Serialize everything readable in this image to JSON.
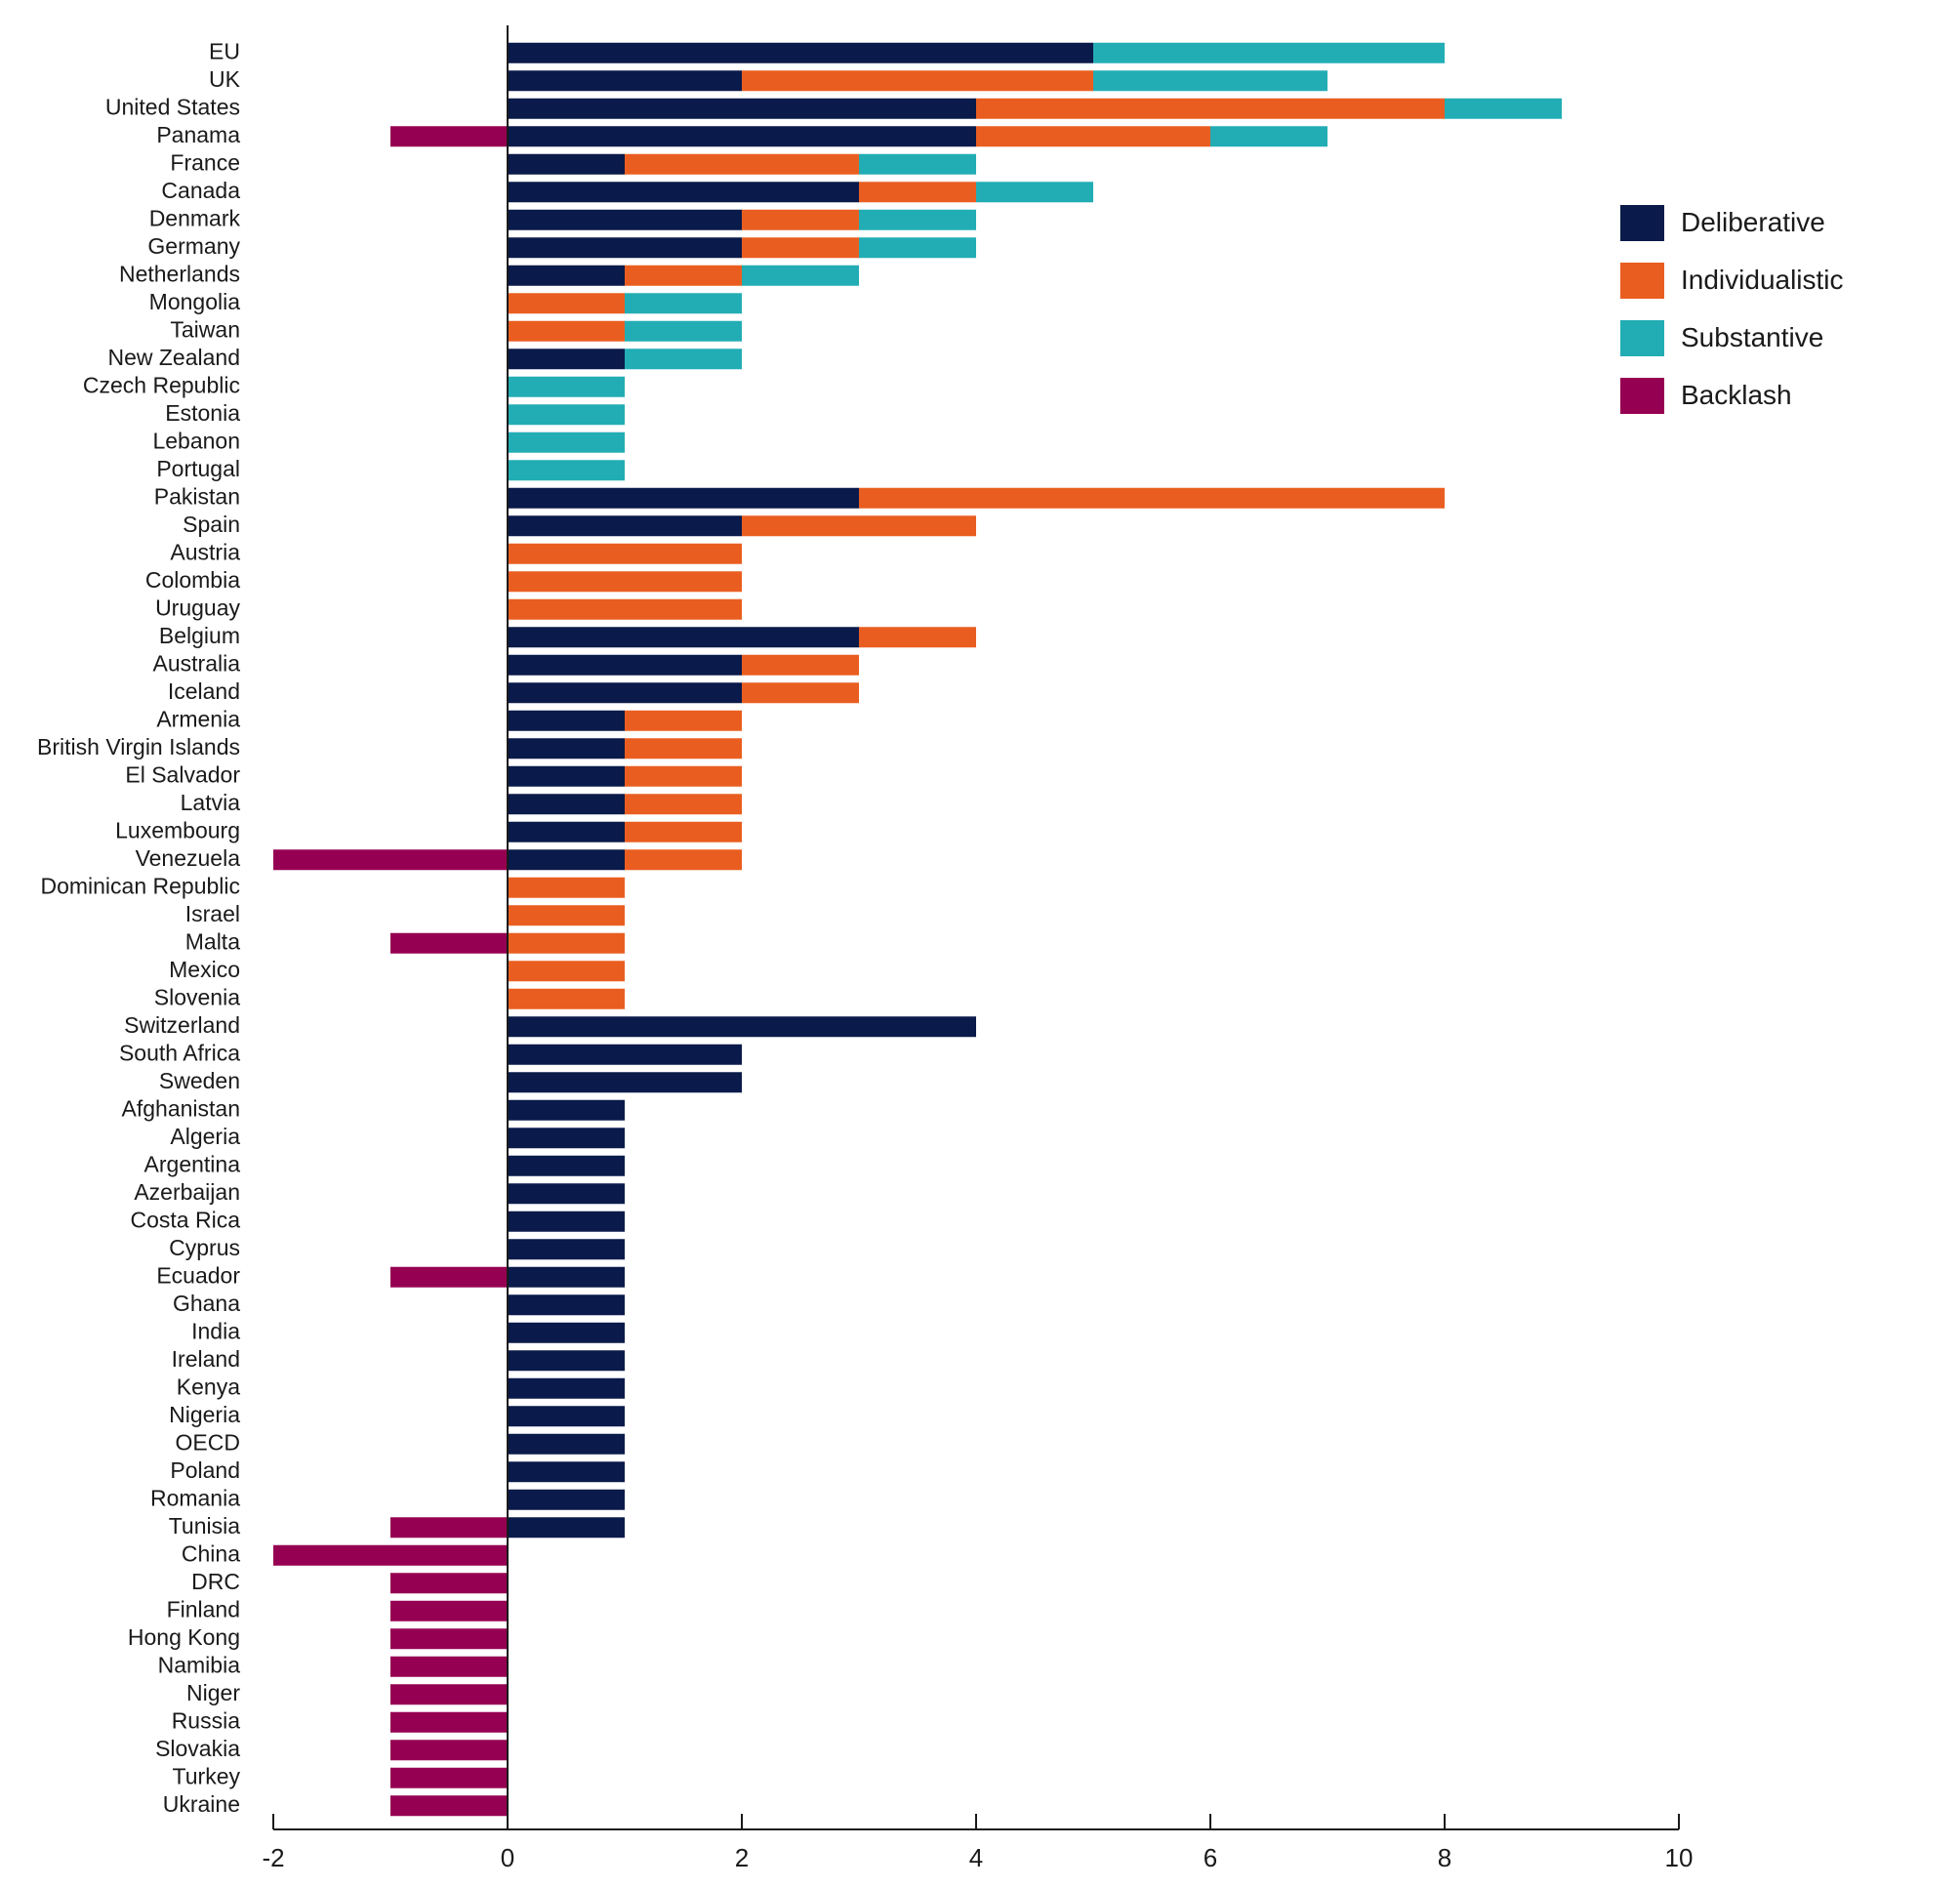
{
  "chart_data": {
    "type": "bar",
    "orientation": "horizontal",
    "stacked": true,
    "title": "",
    "xlabel": "",
    "ylabel": "",
    "xlim": [
      -2,
      10
    ],
    "x_ticks": [
      "-2",
      "0",
      "2",
      "4",
      "6",
      "8",
      "10"
    ],
    "grid": false,
    "legend_position": "top-right",
    "categories": [
      "EU",
      "UK",
      "United States",
      "Panama",
      "France",
      "Canada",
      "Denmark",
      "Germany",
      "Netherlands",
      "Mongolia",
      "Taiwan",
      "New Zealand",
      "Czech Republic",
      "Estonia",
      "Lebanon",
      "Portugal",
      "Pakistan",
      "Spain",
      "Austria",
      "Colombia",
      "Uruguay",
      "Belgium",
      "Australia",
      "Iceland",
      "Armenia",
      "British Virgin Islands",
      "El Salvador",
      "Latvia",
      "Luxembourg",
      "Venezuela",
      "Dominican Republic",
      "Israel",
      "Malta",
      "Mexico",
      "Slovenia",
      "Switzerland",
      "South Africa",
      "Sweden",
      "Afghanistan",
      "Algeria",
      "Argentina",
      "Azerbaijan",
      "Costa Rica",
      "Cyprus",
      "Ecuador",
      "Ghana",
      "India",
      "Ireland",
      "Kenya",
      "Nigeria",
      "OECD",
      "Poland",
      "Romania",
      "Tunisia",
      "China",
      "DRC",
      "Finland",
      "Hong Kong",
      "Namibia",
      "Niger",
      "Russia",
      "Slovakia",
      "Turkey",
      "Ukraine"
    ],
    "series": [
      {
        "name": "Deliberative",
        "color": "#0a1a4a",
        "values": [
          5,
          2,
          4,
          4,
          1,
          3,
          2,
          2,
          1,
          0,
          0,
          1,
          0,
          0,
          0,
          0,
          3,
          2,
          0,
          0,
          0,
          3,
          2,
          2,
          1,
          1,
          1,
          1,
          1,
          1,
          0,
          0,
          0,
          0,
          0,
          4,
          2,
          2,
          1,
          1,
          1,
          1,
          1,
          1,
          1,
          1,
          1,
          1,
          1,
          1,
          1,
          1,
          1,
          1,
          0,
          0,
          0,
          0,
          0,
          0,
          0,
          0,
          0,
          0
        ]
      },
      {
        "name": "Individualistic",
        "color": "#e95e20",
        "values": [
          0,
          3,
          4,
          2,
          2,
          1,
          1,
          1,
          1,
          1,
          1,
          0,
          0,
          0,
          0,
          0,
          5,
          2,
          2,
          2,
          2,
          1,
          1,
          1,
          1,
          1,
          1,
          1,
          1,
          1,
          1,
          1,
          1,
          1,
          1,
          0,
          0,
          0,
          0,
          0,
          0,
          0,
          0,
          0,
          0,
          0,
          0,
          0,
          0,
          0,
          0,
          0,
          0,
          0,
          0,
          0,
          0,
          0,
          0,
          0,
          0,
          0,
          0,
          0
        ]
      },
      {
        "name": "Substantive",
        "color": "#22adb5",
        "values": [
          3,
          2,
          1,
          1,
          1,
          1,
          1,
          1,
          1,
          1,
          1,
          1,
          1,
          1,
          1,
          1,
          0,
          0,
          0,
          0,
          0,
          0,
          0,
          0,
          0,
          0,
          0,
          0,
          0,
          0,
          0,
          0,
          0,
          0,
          0,
          0,
          0,
          0,
          0,
          0,
          0,
          0,
          0,
          0,
          0,
          0,
          0,
          0,
          0,
          0,
          0,
          0,
          0,
          0,
          0,
          0,
          0,
          0,
          0,
          0,
          0,
          0,
          0,
          0
        ]
      },
      {
        "name": "Backlash",
        "color": "#960052",
        "values": [
          0,
          0,
          0,
          -1,
          0,
          0,
          0,
          0,
          0,
          0,
          0,
          0,
          0,
          0,
          0,
          0,
          0,
          0,
          0,
          0,
          0,
          0,
          0,
          0,
          0,
          0,
          0,
          0,
          0,
          -2,
          0,
          0,
          -1,
          0,
          0,
          0,
          0,
          0,
          0,
          0,
          0,
          0,
          0,
          0,
          -1,
          0,
          0,
          0,
          0,
          0,
          0,
          0,
          0,
          -1,
          -2,
          -1,
          -1,
          -1,
          -1,
          -1,
          -1,
          -1,
          -1,
          -1
        ]
      }
    ]
  }
}
